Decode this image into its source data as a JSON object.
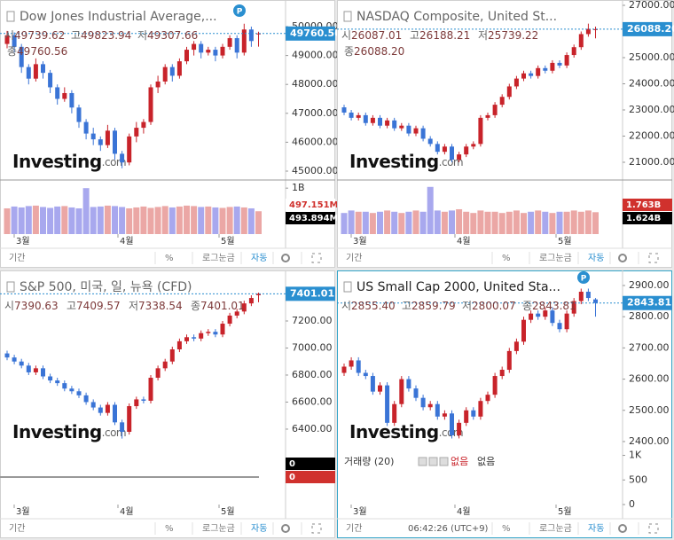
{
  "watermark": "Investing",
  "watermark_suffix": ".com",
  "panels": [
    {
      "title": "Dow Jones Industrial Average,...",
      "badge": "P",
      "quote": [
        {
          "label": "시",
          "value": "49739.62"
        },
        {
          "label": "고",
          "value": "49823.94"
        },
        {
          "label": "저",
          "value": "49307.66"
        },
        {
          "label": "종",
          "value": "49760.56"
        }
      ],
      "price_tag": "49760.56",
      "ylim": [
        44785,
        50767
      ],
      "yticks": [
        {
          "value": 50000,
          "label": "50000.00"
        },
        {
          "value": 49000,
          "label": "49000.00"
        },
        {
          "value": 48000,
          "label": "48000.00"
        },
        {
          "value": 47000,
          "label": "47000.00"
        },
        {
          "value": 46000,
          "label": "46000.00"
        },
        {
          "value": 45000,
          "label": "45000.00"
        }
      ],
      "candles": {
        "open": [
          49400,
          49700,
          49300,
          48600,
          48200,
          48700,
          48400,
          47900,
          47500,
          47700,
          47200,
          46700,
          46300,
          46100,
          45900,
          46400,
          45600,
          45300,
          46200,
          46500,
          46700,
          47900,
          48100,
          48600,
          48300,
          48800,
          49200,
          49400,
          49100,
          49200,
          49000,
          49300,
          49600,
          49100,
          49900,
          49739.62
        ],
        "high": [
          49850,
          49800,
          49400,
          48700,
          48900,
          48800,
          48500,
          48000,
          47900,
          47800,
          47300,
          46800,
          46500,
          46200,
          46600,
          46500,
          45700,
          46300,
          46700,
          46800,
          48000,
          48300,
          48700,
          48700,
          48900,
          49300,
          49500,
          49500,
          49300,
          49300,
          49400,
          49700,
          49700,
          50100,
          50000,
          49823.94
        ],
        "low": [
          49250,
          49100,
          48400,
          48000,
          48100,
          48200,
          47700,
          47300,
          47400,
          47000,
          46500,
          46100,
          45900,
          45700,
          45800,
          45400,
          45100,
          45200,
          46000,
          46300,
          46600,
          47700,
          48000,
          48100,
          48200,
          48700,
          49000,
          48900,
          49000,
          48800,
          48900,
          49200,
          48900,
          49000,
          49300,
          49307.66
        ],
        "close": [
          49700,
          49300,
          48600,
          48200,
          48700,
          48400,
          47900,
          47500,
          47700,
          47200,
          46700,
          46300,
          46100,
          45900,
          46400,
          45600,
          45300,
          46200,
          46500,
          46700,
          47900,
          48100,
          48600,
          48300,
          48800,
          49200,
          49400,
          49100,
          49200,
          49000,
          49300,
          49600,
          49100,
          49900,
          49500,
          49760.56
        ]
      },
      "volume": {
        "values": [
          560,
          600,
          580,
          610,
          620,
          590,
          570,
          600,
          610,
          580,
          560,
          1000,
          590,
          600,
          620,
          610,
          590,
          560,
          580,
          600,
          570,
          590,
          610,
          580,
          600,
          620,
          610,
          590,
          600,
          580,
          570,
          590,
          600,
          580,
          560,
          497
        ],
        "ylim": [
          0,
          1100
        ],
        "ticks": [
          {
            "value": 1000,
            "label": "1B"
          }
        ],
        "tags": [
          "497.151M",
          "493.894M"
        ],
        "tag_colors": [
          "#ffffff",
          "#000000"
        ],
        "tag_text_colors": [
          "#d0312d",
          "#ffffff"
        ]
      },
      "months": [
        "3월",
        "4월",
        "5월"
      ],
      "toolbar": [
        "기간",
        "%",
        "로그눈금",
        "자동"
      ]
    },
    {
      "title": "NASDAQ Composite, United St...",
      "quote": [
        {
          "label": "시",
          "value": "26087.01"
        },
        {
          "label": "고",
          "value": "26188.21"
        },
        {
          "label": "저",
          "value": "25739.22"
        },
        {
          "label": "종",
          "value": "26088.20"
        }
      ],
      "price_tag": "26088.20",
      "ylim": [
        20424,
        27034
      ],
      "yticks": [
        {
          "value": 27000,
          "label": "27000.00"
        },
        {
          "value": 25000,
          "label": "25000.00"
        },
        {
          "value": 24000,
          "label": "24000.00"
        },
        {
          "value": 23000,
          "label": "23000.00"
        },
        {
          "value": 22000,
          "label": "22000.00"
        },
        {
          "value": 21000,
          "label": "21000.00"
        }
      ],
      "candles": {
        "open": [
          23100,
          22900,
          22700,
          22800,
          22500,
          22700,
          22400,
          22600,
          22300,
          22400,
          22100,
          22300,
          21900,
          21700,
          21400,
          21600,
          21100,
          21300,
          21600,
          21700,
          22700,
          22800,
          23200,
          23500,
          23900,
          24200,
          24400,
          24300,
          24600,
          24500,
          24800,
          24700,
          25100,
          25400,
          25900,
          26087.01
        ],
        "high": [
          23200,
          23000,
          22900,
          22900,
          22800,
          22800,
          22700,
          22700,
          22500,
          22500,
          22400,
          22400,
          22000,
          21800,
          21700,
          21700,
          21400,
          21700,
          21800,
          22800,
          22900,
          23300,
          23600,
          24000,
          24300,
          24500,
          24500,
          24700,
          24700,
          24900,
          24900,
          25200,
          25500,
          26000,
          26300,
          26188.21
        ],
        "low": [
          22800,
          22600,
          22600,
          22400,
          22400,
          22300,
          22300,
          22200,
          22200,
          22000,
          22000,
          21800,
          21600,
          21300,
          21300,
          21000,
          21000,
          21200,
          21500,
          21600,
          22600,
          22700,
          23100,
          23400,
          23800,
          24100,
          24200,
          24200,
          24400,
          24400,
          24600,
          24600,
          25000,
          25300,
          25800,
          25739.22
        ],
        "close": [
          22900,
          22700,
          22800,
          22500,
          22700,
          22400,
          22600,
          22300,
          22400,
          22100,
          22300,
          21900,
          21700,
          21400,
          21600,
          21100,
          21300,
          21600,
          21700,
          22700,
          22800,
          23200,
          23500,
          23900,
          24200,
          24400,
          24300,
          24600,
          24500,
          24800,
          24700,
          25100,
          25400,
          25900,
          26100,
          26088.2
        ]
      },
      "volume": {
        "values": [
          1.7,
          1.9,
          1.8,
          1.8,
          1.7,
          1.8,
          1.9,
          1.8,
          1.7,
          1.8,
          1.9,
          1.8,
          3.8,
          1.9,
          1.8,
          1.9,
          2.0,
          1.8,
          1.7,
          1.9,
          1.8,
          1.8,
          1.7,
          1.8,
          1.9,
          1.7,
          1.8,
          1.9,
          1.8,
          1.7,
          1.8,
          1.8,
          1.9,
          1.8,
          1.9,
          1.763
        ],
        "ylim": [
          0,
          4.07
        ],
        "ticks": [
          {
            "value": 2.5,
            "label": "2.5B"
          }
        ],
        "tags": [
          "1.763B",
          "1.624B"
        ],
        "tag_colors": [
          "#d0312d",
          "#000000"
        ],
        "tag_text_colors": [
          "#ffffff",
          "#ffffff"
        ]
      },
      "months": [
        "3월",
        "4월",
        "5월"
      ],
      "toolbar": [
        "기간",
        "%",
        "로그눈금",
        "자동"
      ]
    },
    {
      "title": "S&P 500, 미국, 일, 뉴욕 (CFD)",
      "quote": [
        {
          "label": "시",
          "value": "7390.63"
        },
        {
          "label": "고",
          "value": "7409.57"
        },
        {
          "label": "저",
          "value": "7338.54"
        },
        {
          "label": "종",
          "value": "7401.01"
        }
      ],
      "price_tag": "7401.01",
      "ylim": [
        6262,
        7541
      ],
      "yticks": [
        {
          "value": 7200,
          "label": "7200.00"
        },
        {
          "value": 7000,
          "label": "7000.00"
        },
        {
          "value": 6800,
          "label": "6800.00"
        },
        {
          "value": 6600,
          "label": "6600.00"
        },
        {
          "value": 6400,
          "label": "6400.00"
        }
      ],
      "candles": {
        "open": [
          6960,
          6930,
          6900,
          6870,
          6820,
          6850,
          6790,
          6760,
          6740,
          6700,
          6680,
          6650,
          6600,
          6560,
          6520,
          6580,
          6450,
          6380,
          6570,
          6620,
          6610,
          6780,
          6850,
          6900,
          6990,
          7050,
          7080,
          7070,
          7110,
          7120,
          7100,
          7180,
          7240,
          7270,
          7330,
          7390.63
        ],
        "high": [
          6980,
          6950,
          6920,
          6890,
          6870,
          6870,
          6810,
          6780,
          6760,
          6720,
          6700,
          6670,
          6620,
          6580,
          6600,
          6600,
          6470,
          6590,
          6640,
          6640,
          6800,
          6870,
          6920,
          7010,
          7070,
          7100,
          7100,
          7130,
          7140,
          7140,
          7200,
          7260,
          7290,
          7350,
          7390,
          7409.57
        ],
        "low": [
          6910,
          6880,
          6850,
          6800,
          6800,
          6770,
          6740,
          6720,
          6680,
          6660,
          6630,
          6580,
          6540,
          6500,
          6500,
          6430,
          6330,
          6360,
          6550,
          6590,
          6590,
          6760,
          6830,
          6880,
          6970,
          7030,
          7050,
          7050,
          7090,
          7080,
          7080,
          7160,
          7220,
          7250,
          7310,
          7338.54
        ],
        "close": [
          6930,
          6900,
          6870,
          6820,
          6850,
          6790,
          6760,
          6740,
          6700,
          6680,
          6650,
          6600,
          6560,
          6520,
          6580,
          6450,
          6380,
          6570,
          6620,
          6610,
          6780,
          6850,
          6900,
          6990,
          7050,
          7080,
          7070,
          7110,
          7120,
          7100,
          7180,
          7240,
          7270,
          7330,
          7370,
          7401.01
        ]
      },
      "volume": {
        "tags": [
          "0",
          "0"
        ],
        "tag_colors": [
          "#000000",
          "#d0312d"
        ],
        "tag_text_colors": [
          "#ffffff",
          "#ffffff"
        ]
      },
      "months": [
        "3월",
        "4월",
        "5월"
      ],
      "toolbar": [
        "기간",
        "%",
        "로그눈금",
        "자동"
      ]
    },
    {
      "title": "US Small Cap 2000, United Sta...",
      "badge": "P",
      "active": true,
      "quote": [
        {
          "label": "시",
          "value": "2855.40"
        },
        {
          "label": "고",
          "value": "2859.79"
        },
        {
          "label": "저",
          "value": "2800.07"
        },
        {
          "label": "종",
          "value": "2843.81"
        }
      ],
      "price_tag": "2843.81",
      "ylim": [
        2380,
        2934
      ],
      "yticks": [
        {
          "value": 2900,
          "label": "2900.00"
        },
        {
          "value": 2800,
          "label": "2800.00"
        },
        {
          "value": 2700,
          "label": "2700.00"
        },
        {
          "value": 2600,
          "label": "2600.00"
        },
        {
          "value": 2500,
          "label": "2500.00"
        },
        {
          "value": 2400,
          "label": "2400.00"
        }
      ],
      "candles": {
        "open": [
          2620,
          2640,
          2660,
          2620,
          2610,
          2560,
          2580,
          2460,
          2520,
          2600,
          2570,
          2540,
          2510,
          2520,
          2480,
          2490,
          2420,
          2460,
          2500,
          2480,
          2530,
          2550,
          2610,
          2630,
          2690,
          2720,
          2790,
          2810,
          2800,
          2820,
          2780,
          2760,
          2810,
          2850,
          2880,
          2855.4
        ],
        "high": [
          2650,
          2670,
          2670,
          2630,
          2620,
          2590,
          2590,
          2530,
          2610,
          2610,
          2580,
          2550,
          2530,
          2530,
          2500,
          2500,
          2470,
          2510,
          2510,
          2540,
          2560,
          2620,
          2640,
          2700,
          2730,
          2800,
          2820,
          2820,
          2830,
          2830,
          2790,
          2820,
          2860,
          2890,
          2890,
          2859.79
        ],
        "low": [
          2610,
          2630,
          2610,
          2600,
          2550,
          2550,
          2450,
          2450,
          2510,
          2560,
          2530,
          2500,
          2500,
          2470,
          2470,
          2410,
          2410,
          2450,
          2470,
          2470,
          2520,
          2540,
          2600,
          2620,
          2680,
          2710,
          2780,
          2790,
          2790,
          2770,
          2750,
          2750,
          2800,
          2840,
          2850,
          2800.07
        ],
        "close": [
          2640,
          2660,
          2620,
          2610,
          2560,
          2580,
          2460,
          2520,
          2600,
          2570,
          2540,
          2510,
          2520,
          2480,
          2490,
          2420,
          2460,
          2500,
          2480,
          2530,
          2550,
          2610,
          2630,
          2690,
          2720,
          2790,
          2810,
          2800,
          2820,
          2780,
          2760,
          2810,
          2850,
          2880,
          2860,
          2843.81
        ]
      },
      "volume": {
        "ylim": [
          0,
          1154
        ],
        "ticks": [
          {
            "value": 1000,
            "label": "1K"
          },
          500,
          0
        ]
      },
      "legend": [
        "거래량 (20)",
        "없음",
        "없음"
      ],
      "months": [
        "3월",
        "4월",
        "5월"
      ],
      "toolbar": [
        "기간",
        "%",
        "로그눈금",
        "자동"
      ],
      "time": "06:42:26 (UTC+9)"
    }
  ]
}
